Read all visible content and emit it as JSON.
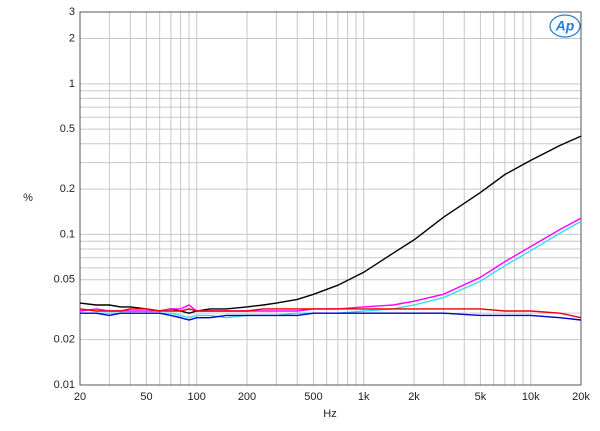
{
  "chart_data": {
    "type": "line",
    "logo": "Ap",
    "xlabel": "Hz",
    "ylabel": "%",
    "xscale": "log",
    "yscale": "log",
    "grid": true,
    "xlim": [
      20,
      20000
    ],
    "ylim": [
      0.01,
      3
    ],
    "xticks": [
      20,
      50,
      100,
      200,
      500,
      {
        "value": 1000,
        "label": "1k"
      },
      {
        "value": 2000,
        "label": "2k"
      },
      {
        "value": 5000,
        "label": "5k"
      },
      {
        "value": 10000,
        "label": "10k"
      },
      {
        "value": 20000,
        "label": "20k"
      }
    ],
    "yticks": [
      0.01,
      0.02,
      0.05,
      0.1,
      0.2,
      0.5,
      1,
      2,
      3
    ],
    "xminorticks": [
      30,
      40,
      60,
      70,
      80,
      90,
      300,
      400,
      600,
      700,
      800,
      900,
      3000,
      4000,
      6000,
      7000,
      8000,
      9000
    ],
    "yminorticks": [
      0.03,
      0.04,
      0.06,
      0.07,
      0.08,
      0.09,
      0.3,
      0.4,
      0.6,
      0.7,
      0.8,
      0.9
    ],
    "x": [
      20,
      25,
      30,
      35,
      40,
      50,
      60,
      70,
      80,
      90,
      100,
      120,
      150,
      200,
      250,
      300,
      400,
      500,
      700,
      1000,
      1500,
      2000,
      3000,
      5000,
      7000,
      10000,
      15000,
      20000
    ],
    "series": [
      {
        "color": "#000000",
        "values": [
          0.035,
          0.034,
          0.034,
          0.033,
          0.033,
          0.032,
          0.031,
          0.032,
          0.031,
          0.03,
          0.031,
          0.032,
          0.032,
          0.033,
          0.034,
          0.035,
          0.037,
          0.04,
          0.046,
          0.056,
          0.075,
          0.092,
          0.13,
          0.19,
          0.25,
          0.31,
          0.39,
          0.45
        ]
      },
      {
        "color": "#ff00ff",
        "values": [
          0.031,
          0.032,
          0.031,
          0.031,
          0.031,
          0.031,
          0.031,
          0.032,
          0.032,
          0.034,
          0.031,
          0.031,
          0.031,
          0.031,
          0.031,
          0.031,
          0.031,
          0.032,
          0.032,
          0.033,
          0.034,
          0.036,
          0.04,
          0.052,
          0.066,
          0.083,
          0.108,
          0.128
        ]
      },
      {
        "color": "#33ddee",
        "values": [
          0.03,
          0.03,
          0.03,
          0.03,
          0.03,
          0.03,
          0.03,
          0.03,
          0.029,
          0.028,
          0.029,
          0.029,
          0.028,
          0.029,
          0.029,
          0.029,
          0.03,
          0.03,
          0.03,
          0.031,
          0.032,
          0.034,
          0.038,
          0.049,
          0.062,
          0.078,
          0.102,
          0.122
        ]
      },
      {
        "color": "#ee0000",
        "values": [
          0.032,
          0.031,
          0.031,
          0.031,
          0.032,
          0.032,
          0.031,
          0.031,
          0.031,
          0.032,
          0.031,
          0.031,
          0.031,
          0.031,
          0.032,
          0.032,
          0.032,
          0.032,
          0.032,
          0.032,
          0.032,
          0.032,
          0.032,
          0.032,
          0.031,
          0.031,
          0.03,
          0.028
        ]
      },
      {
        "color": "#0000cc",
        "values": [
          0.03,
          0.03,
          0.029,
          0.03,
          0.03,
          0.03,
          0.03,
          0.029,
          0.028,
          0.027,
          0.028,
          0.028,
          0.029,
          0.029,
          0.029,
          0.029,
          0.029,
          0.03,
          0.03,
          0.03,
          0.03,
          0.03,
          0.03,
          0.029,
          0.029,
          0.029,
          0.028,
          0.027
        ]
      }
    ]
  }
}
